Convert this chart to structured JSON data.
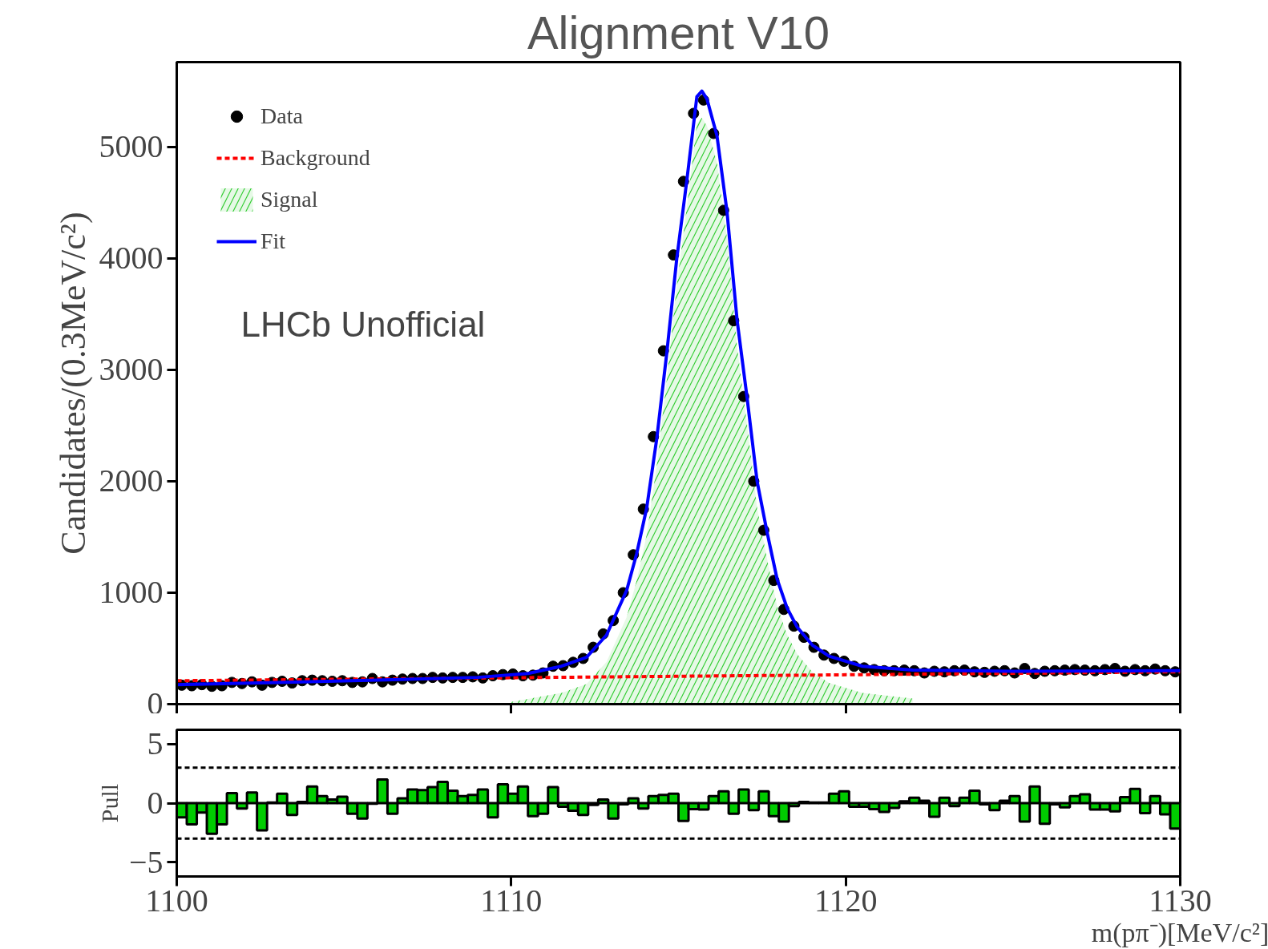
{
  "chart_data": [
    {
      "type": "scatter",
      "title": "Alignment V10",
      "ylabel": "Candidates/(0.3MeV/c²)",
      "annotations": [
        "LHCb Unofficial"
      ],
      "xlim": [
        1100,
        1130
      ],
      "xticks": [
        {
          "value": 1100,
          "label": null
        },
        {
          "value": 1110,
          "label": null
        },
        {
          "value": 1120,
          "label": null
        },
        {
          "value": 1130,
          "label": null
        }
      ],
      "ylim": [
        0,
        5760
      ],
      "yticks": [
        0,
        1000,
        2000,
        3000,
        4000,
        5000
      ],
      "tick_labels": "y",
      "grid": false,
      "legend": "top left",
      "series": [
        {
          "name": "Data",
          "type": "scatter",
          "marker": "circle",
          "color": "#000000",
          "x": [
            1100.15,
            1100.45,
            1100.75,
            1101.05,
            1101.35,
            1101.65,
            1101.95,
            1102.25,
            1102.55,
            1102.85,
            1103.15,
            1103.45,
            1103.75,
            1104.05,
            1104.35,
            1104.65,
            1104.95,
            1105.25,
            1105.55,
            1105.85,
            1106.15,
            1106.45,
            1106.75,
            1107.05,
            1107.35,
            1107.65,
            1107.95,
            1108.25,
            1108.55,
            1108.85,
            1109.15,
            1109.45,
            1109.75,
            1110.05,
            1110.35,
            1110.65,
            1110.95,
            1111.25,
            1111.55,
            1111.85,
            1112.15,
            1112.45,
            1112.75,
            1113.05,
            1113.35,
            1113.65,
            1113.95,
            1114.25,
            1114.55,
            1114.85,
            1115.15,
            1115.45,
            1115.75,
            1116.05,
            1116.35,
            1116.65,
            1116.95,
            1117.25,
            1117.55,
            1117.85,
            1118.15,
            1118.45,
            1118.75,
            1119.05,
            1119.35,
            1119.65,
            1119.95,
            1120.25,
            1120.55,
            1120.85,
            1121.15,
            1121.45,
            1121.75,
            1122.05,
            1122.35,
            1122.65,
            1122.95,
            1123.25,
            1123.55,
            1123.85,
            1124.15,
            1124.45,
            1124.75,
            1125.05,
            1125.35,
            1125.65,
            1125.95,
            1126.25,
            1126.55,
            1126.85,
            1127.15,
            1127.45,
            1127.75,
            1128.05,
            1128.35,
            1128.65,
            1128.95,
            1129.25,
            1129.55,
            1129.85
          ],
          "values": [
            170,
            165,
            175,
            160,
            165,
            195,
            185,
            200,
            170,
            195,
            205,
            190,
            210,
            215,
            210,
            205,
            210,
            195,
            200,
            230,
            200,
            215,
            225,
            230,
            230,
            240,
            235,
            240,
            240,
            245,
            235,
            255,
            265,
            270,
            255,
            260,
            280,
            340,
            345,
            375,
            410,
            510,
            630,
            750,
            1000,
            1340,
            1750,
            2400,
            3170,
            4030,
            4690,
            5300,
            5420,
            5120,
            4430,
            3440,
            2760,
            2000,
            1560,
            1110,
            850,
            700,
            600,
            510,
            440,
            410,
            385,
            340,
            325,
            310,
            300,
            300,
            305,
            300,
            280,
            295,
            290,
            300,
            305,
            290,
            285,
            295,
            300,
            280,
            320,
            275,
            295,
            300,
            305,
            310,
            305,
            300,
            310,
            320,
            295,
            310,
            300,
            315,
            300,
            290
          ]
        },
        {
          "name": "Background",
          "type": "line",
          "line_style": "dashed",
          "color": "#ff0000",
          "x": [
            1100,
            1130
          ],
          "values": [
            210,
            290
          ]
        },
        {
          "name": "Signal",
          "type": "area",
          "color": "#33cc33",
          "x": [
            1110,
            1111.5,
            1112.25,
            1112.85,
            1113.45,
            1113.75,
            1114.05,
            1114.35,
            1114.65,
            1114.95,
            1115.25,
            1115.55,
            1115.7,
            1115.85,
            1116.15,
            1116.45,
            1116.75,
            1117.05,
            1117.35,
            1117.65,
            1117.95,
            1118.25,
            1118.55,
            1119,
            1119.5,
            1120.5,
            1122
          ],
          "values": [
            20,
            100,
            180,
            380,
            780,
            1110,
            1520,
            2140,
            2910,
            3760,
            4460,
            5210,
            5260,
            5190,
            4860,
            4180,
            3210,
            2510,
            1760,
            1300,
            880,
            620,
            450,
            290,
            190,
            100,
            50
          ]
        },
        {
          "name": "Fit",
          "type": "line",
          "line_style": "solid",
          "color": "#0000ff",
          "x": [
            1100,
            1103,
            1106,
            1109,
            1110.5,
            1111.5,
            1112.25,
            1112.85,
            1113.45,
            1113.75,
            1114.05,
            1114.35,
            1114.65,
            1114.95,
            1115.25,
            1115.55,
            1115.7,
            1115.85,
            1116.15,
            1116.45,
            1116.75,
            1117.05,
            1117.35,
            1117.65,
            1117.95,
            1118.25,
            1118.55,
            1119,
            1119.5,
            1120.5,
            1122,
            1125,
            1130
          ],
          "values": [
            175,
            195,
            215,
            240,
            275,
            340,
            420,
            620,
            1020,
            1350,
            1760,
            2380,
            3150,
            4000,
            4700,
            5450,
            5500,
            5430,
            5100,
            4420,
            3450,
            2750,
            2000,
            1540,
            1120,
            860,
            690,
            530,
            430,
            340,
            305,
            295,
            300
          ]
        }
      ]
    },
    {
      "type": "histogram",
      "xlabel": "m(pπ⁻)[MeV/c²]",
      "ylabel": "Pull",
      "color": "#00cc00",
      "xlim": [
        1100,
        1130
      ],
      "xticks": [
        1100,
        1110,
        1120,
        1130
      ],
      "ylim": [
        -6.2,
        6.2
      ],
      "yticks": [
        {
          "value": -5,
          "label": "−5"
        },
        0,
        5
      ],
      "grid": false,
      "ref_lines": [
        {
          "axis": "y",
          "value": 3,
          "label": null,
          "color": "#000000",
          "line_style": "dashed"
        },
        {
          "axis": "y",
          "value": -3,
          "label": null,
          "color": "#000000",
          "line_style": "dashed"
        }
      ],
      "bins": [
        1100,
        1100.3,
        1100.6,
        1100.9,
        1101.2,
        1101.5,
        1101.8,
        1102.1,
        1102.4,
        1102.7,
        1103,
        1103.3,
        1103.6,
        1103.9,
        1104.2,
        1104.5,
        1104.8,
        1105.1,
        1105.4,
        1105.7,
        1106,
        1106.3,
        1106.6,
        1106.9,
        1107.2,
        1107.5,
        1107.8,
        1108.1,
        1108.4,
        1108.7,
        1109,
        1109.3,
        1109.6,
        1109.9,
        1110.2,
        1110.5,
        1110.8,
        1111.1,
        1111.4,
        1111.7,
        1112,
        1112.3,
        1112.6,
        1112.9,
        1113.2,
        1113.5,
        1113.8,
        1114.1,
        1114.4,
        1114.7,
        1115,
        1115.3,
        1115.6,
        1115.9,
        1116.2,
        1116.5,
        1116.8,
        1117.1,
        1117.4,
        1117.7,
        1118,
        1118.3,
        1118.6,
        1118.9,
        1119.2,
        1119.5,
        1119.8,
        1120.1,
        1120.4,
        1120.7,
        1121,
        1121.3,
        1121.6,
        1121.9,
        1122.2,
        1122.5,
        1122.8,
        1123.1,
        1123.4,
        1123.7,
        1124,
        1124.3,
        1124.6,
        1124.9,
        1125.2,
        1125.5,
        1125.8,
        1126.1,
        1126.4,
        1126.7,
        1127,
        1127.3,
        1127.6,
        1127.9,
        1128.2,
        1128.5,
        1128.8,
        1129.1,
        1129.4,
        1129.7,
        1130
      ],
      "values": [
        -1.2,
        -1.8,
        -0.8,
        -2.6,
        -1.8,
        0.85,
        -0.45,
        0.9,
        -2.3,
        0.05,
        0.8,
        -1.0,
        0.1,
        1.4,
        0.6,
        0.3,
        0.55,
        -0.9,
        -1.3,
        -0.05,
        2.0,
        -0.9,
        0.4,
        1.15,
        1.1,
        1.35,
        1.8,
        1.05,
        0.6,
        0.7,
        1.15,
        -1.2,
        1.6,
        0.8,
        1.4,
        -1.1,
        -0.9,
        1.35,
        -0.3,
        -0.65,
        -1.0,
        -0.15,
        0.3,
        -1.3,
        -0.1,
        0.4,
        -0.45,
        0.6,
        0.7,
        0.8,
        -1.5,
        -0.5,
        -0.55,
        0.6,
        1.0,
        -0.9,
        1.15,
        -0.6,
        1.0,
        -1.1,
        -1.55,
        -0.25,
        0.1,
        0.05,
        0.05,
        0.8,
        1.0,
        -0.3,
        -0.3,
        -0.5,
        -0.75,
        -0.4,
        0.15,
        0.45,
        0.2,
        -1.15,
        0.45,
        -0.25,
        0.45,
        1.05,
        -0.1,
        -0.6,
        0.2,
        0.6,
        -1.55,
        1.4,
        -1.75,
        -0.1,
        -0.35,
        0.6,
        0.75,
        -0.55,
        -0.55,
        -0.7,
        0.5,
        1.2,
        -0.85,
        0.6,
        -0.95,
        -2.15
      ]
    }
  ]
}
